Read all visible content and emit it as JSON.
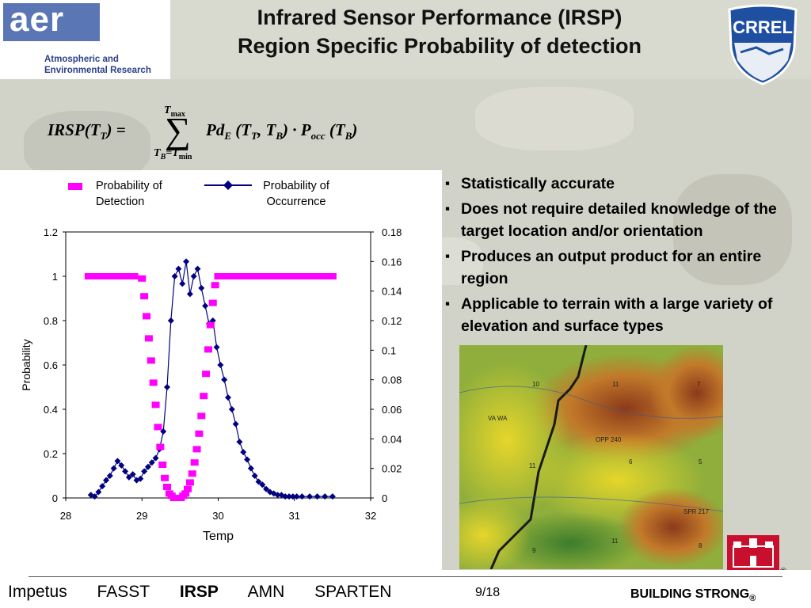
{
  "header": {
    "logo_mark": "aer",
    "logo_sub_line1": "Atmospheric and",
    "logo_sub_line2": "Environmental Research",
    "title_line1": "Infrared Sensor Performance (IRSP)",
    "title_line2": "Region Specific Probability of detection",
    "right_logo_text": "CRREL"
  },
  "formula": {
    "lhs": "IRSP",
    "lhs_sub": "T",
    "sum_top": "T",
    "sum_top_sub": "max",
    "sum_bottom": "T",
    "sum_bottom_sub": "B",
    "sum_bottom_eq": "=T",
    "sum_bottom_eq_sub": "min",
    "term1": "Pd",
    "term1_sub": "E",
    "arg1": "T",
    "arg1_sub": "T",
    "arg2": "T",
    "arg2_sub": "B",
    "dot": "·",
    "term2": "P",
    "term2_sub": "occ",
    "arg3": "T",
    "arg3_sub": "B"
  },
  "colors": {
    "detection": "#ff00ff",
    "occurrence": "#000080",
    "crrel_blue": "#1e4fa0",
    "castle_red": "#c8102e"
  },
  "chart_data": {
    "type": "scatter",
    "legend_placement": "top",
    "xlabel": "Temp",
    "ylabel": "Probability",
    "xlim": [
      28,
      32
    ],
    "xticks": [
      "28",
      "29",
      "30",
      "31",
      "32"
    ],
    "ylim": [
      0,
      1.2
    ],
    "yticks": [
      "0",
      "0.2",
      "0.4",
      "0.6",
      "0.8",
      "1",
      "1.2"
    ],
    "y2lim": [
      0,
      0.18
    ],
    "y2ticks": [
      "0",
      "0.02",
      "0.04",
      "0.06",
      "0.08",
      "0.1",
      "0.12",
      "0.14",
      "0.16",
      "0.18"
    ],
    "series": [
      {
        "name": "Probability of Detection",
        "axis": "left",
        "marker": "square",
        "x": [
          28.3,
          28.4,
          28.5,
          28.6,
          28.7,
          28.8,
          28.9,
          29.0,
          29.03,
          29.06,
          29.09,
          29.12,
          29.15,
          29.18,
          29.21,
          29.24,
          29.27,
          29.3,
          29.33,
          29.36,
          29.39,
          29.42,
          29.45,
          29.48,
          29.51,
          29.54,
          29.57,
          29.6,
          29.63,
          29.66,
          29.69,
          29.72,
          29.75,
          29.78,
          29.81,
          29.84,
          29.87,
          29.9,
          29.93,
          29.96,
          30.0,
          30.1,
          30.2,
          30.3,
          30.4,
          30.5,
          30.6,
          30.7,
          30.8,
          30.9,
          31.0,
          31.1,
          31.2,
          31.3,
          31.4,
          31.5
        ],
        "y": [
          1.0,
          1.0,
          1.0,
          1.0,
          1.0,
          1.0,
          1.0,
          0.99,
          0.91,
          0.82,
          0.72,
          0.62,
          0.52,
          0.42,
          0.32,
          0.23,
          0.15,
          0.09,
          0.05,
          0.02,
          0.01,
          0.0,
          0.0,
          0.0,
          0.0,
          0.01,
          0.02,
          0.04,
          0.07,
          0.11,
          0.16,
          0.22,
          0.29,
          0.37,
          0.46,
          0.56,
          0.67,
          0.78,
          0.88,
          0.96,
          1.0,
          1.0,
          1.0,
          1.0,
          1.0,
          1.0,
          1.0,
          1.0,
          1.0,
          1.0,
          1.0,
          1.0,
          1.0,
          1.0,
          1.0,
          1.0
        ]
      },
      {
        "name": "Probability of Occurrence",
        "axis": "right",
        "marker": "diamond-line",
        "x": [
          28.33,
          28.38,
          28.43,
          28.48,
          28.53,
          28.58,
          28.63,
          28.68,
          28.73,
          28.78,
          28.83,
          28.88,
          28.93,
          28.98,
          29.03,
          29.08,
          29.13,
          29.18,
          29.23,
          29.28,
          29.33,
          29.38,
          29.43,
          29.48,
          29.53,
          29.58,
          29.63,
          29.68,
          29.73,
          29.78,
          29.83,
          29.88,
          29.93,
          29.98,
          30.03,
          30.08,
          30.13,
          30.18,
          30.23,
          30.28,
          30.33,
          30.38,
          30.43,
          30.48,
          30.53,
          30.58,
          30.63,
          30.68,
          30.73,
          30.78,
          30.83,
          30.88,
          30.93,
          30.98,
          31.03,
          31.1,
          31.2,
          31.3,
          31.4,
          31.5
        ],
        "y": [
          0.002,
          0.001,
          0.004,
          0.008,
          0.012,
          0.015,
          0.02,
          0.025,
          0.022,
          0.018,
          0.014,
          0.016,
          0.012,
          0.013,
          0.018,
          0.021,
          0.024,
          0.027,
          0.033,
          0.045,
          0.075,
          0.12,
          0.15,
          0.155,
          0.145,
          0.16,
          0.138,
          0.15,
          0.155,
          0.142,
          0.13,
          0.118,
          0.12,
          0.102,
          0.09,
          0.08,
          0.068,
          0.06,
          0.05,
          0.038,
          0.031,
          0.026,
          0.02,
          0.015,
          0.011,
          0.009,
          0.006,
          0.004,
          0.003,
          0.002,
          0.002,
          0.001,
          0.001,
          0.001,
          0.001,
          0.001,
          0.001,
          0.001,
          0.001,
          0.001
        ]
      }
    ]
  },
  "bullets": [
    "Statistically accurate",
    "Does not require detailed knowledge of the target location and/or orientation",
    "Produces an output product for an entire region",
    "Applicable to terrain with a large variety of elevation and surface types"
  ],
  "map": {
    "labels": [
      "10",
      "11",
      "7",
      "VA WA",
      "OPP 240",
      "6",
      "5",
      "11",
      "9",
      "11",
      "8",
      "SPR 217"
    ]
  },
  "footer": {
    "nav": [
      "Impetus",
      "FASST",
      "IRSP",
      "AMN",
      "SPARTEN"
    ],
    "current_index": 2,
    "page": "9/18",
    "tagline": "BUILDING STRONG",
    "reg_mark": "®"
  }
}
